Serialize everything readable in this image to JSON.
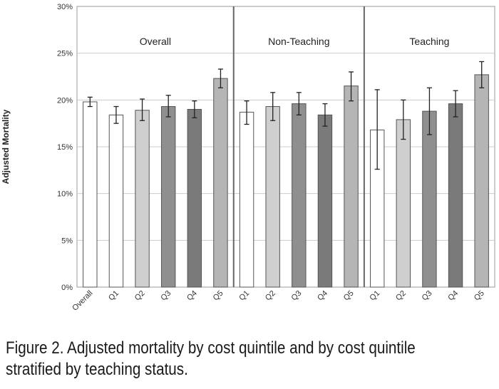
{
  "chart_data": {
    "type": "bar",
    "ylabel": "Adjusted Mortality",
    "ylim": [
      0,
      30
    ],
    "y_ticks": [
      "0%",
      "5%",
      "10%",
      "15%",
      "20%",
      "25%",
      "30%"
    ],
    "grid": true,
    "legend": "none",
    "panels": [
      {
        "title": "Overall",
        "categories": [
          "Overall",
          "Q1",
          "Q2",
          "Q3",
          "Q4",
          "Q5"
        ],
        "values": [
          19.8,
          18.4,
          18.9,
          19.3,
          19.0,
          22.3
        ],
        "error_low": [
          19.3,
          17.5,
          17.8,
          18.2,
          18.1,
          21.3
        ],
        "error_high": [
          20.3,
          19.3,
          20.1,
          20.5,
          19.9,
          23.3
        ]
      },
      {
        "title": "Non-Teaching",
        "categories": [
          "Q1",
          "Q2",
          "Q3",
          "Q4",
          "Q5"
        ],
        "values": [
          18.7,
          19.3,
          19.6,
          18.4,
          21.5
        ],
        "error_low": [
          17.4,
          17.8,
          18.4,
          17.2,
          19.9
        ],
        "error_high": [
          19.9,
          20.8,
          20.8,
          19.6,
          23.0
        ]
      },
      {
        "title": "Teaching",
        "categories": [
          "Q1",
          "Q2",
          "Q3",
          "Q4",
          "Q5"
        ],
        "values": [
          16.8,
          17.9,
          18.8,
          19.6,
          22.7
        ],
        "error_low": [
          12.6,
          15.8,
          16.3,
          18.2,
          21.3
        ],
        "error_high": [
          21.1,
          20.0,
          21.3,
          21.0,
          24.1
        ]
      }
    ]
  },
  "colors": {
    "Overall": "#ffffff",
    "Q1": "#ffffff",
    "Q2": "#cfcfcf",
    "Q3": "#8f8f8f",
    "Q4": "#7a7a7a",
    "Q5": "#b5b5b5",
    "grid": "#cccccc",
    "divider": "#666666",
    "bar_stroke": "#555555"
  },
  "caption": "Figure 2. Adjusted mortality by cost quintile and by cost quintile stratified by teaching status."
}
